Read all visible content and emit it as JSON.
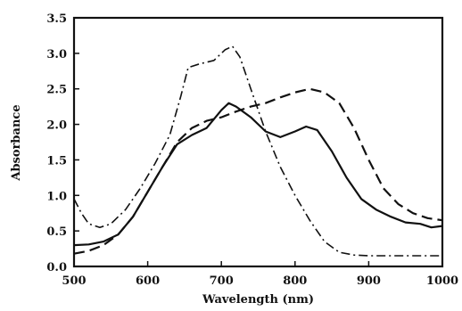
{
  "chart_data": {
    "type": "line",
    "title": "",
    "xlabel": "Wavelength (nm)",
    "ylabel": "Absorbance",
    "xlim": [
      500,
      1000
    ],
    "ylim": [
      0.0,
      3.5
    ],
    "x_ticks": [
      500,
      600,
      700,
      800,
      900,
      1000
    ],
    "x_tick_labels": [
      "500",
      "600",
      "700",
      "800",
      "900",
      "1000"
    ],
    "y_ticks": [
      0.0,
      0.5,
      1.0,
      1.5,
      2.0,
      2.5,
      3.0,
      3.5
    ],
    "y_tick_labels": [
      "0.0",
      "0.5",
      "1.0",
      "1.5",
      "2.0",
      "2.5",
      "3.0",
      "3.5"
    ],
    "grid": false,
    "legend": "none",
    "series": [
      {
        "style": "solid",
        "color": "#111111",
        "points": [
          [
            500,
            0.3
          ],
          [
            520,
            0.31
          ],
          [
            540,
            0.35
          ],
          [
            560,
            0.45
          ],
          [
            580,
            0.7
          ],
          [
            600,
            1.05
          ],
          [
            620,
            1.4
          ],
          [
            640,
            1.72
          ],
          [
            660,
            1.85
          ],
          [
            680,
            1.95
          ],
          [
            700,
            2.2
          ],
          [
            710,
            2.3
          ],
          [
            720,
            2.25
          ],
          [
            740,
            2.1
          ],
          [
            760,
            1.9
          ],
          [
            780,
            1.82
          ],
          [
            800,
            1.9
          ],
          [
            815,
            1.97
          ],
          [
            830,
            1.92
          ],
          [
            850,
            1.62
          ],
          [
            870,
            1.25
          ],
          [
            890,
            0.95
          ],
          [
            910,
            0.8
          ],
          [
            930,
            0.7
          ],
          [
            950,
            0.62
          ],
          [
            970,
            0.6
          ],
          [
            985,
            0.55
          ],
          [
            1000,
            0.57
          ]
        ]
      },
      {
        "style": "dashed",
        "color": "#111111",
        "points": [
          [
            500,
            0.18
          ],
          [
            520,
            0.22
          ],
          [
            540,
            0.3
          ],
          [
            560,
            0.45
          ],
          [
            580,
            0.7
          ],
          [
            600,
            1.05
          ],
          [
            620,
            1.4
          ],
          [
            640,
            1.75
          ],
          [
            660,
            1.95
          ],
          [
            680,
            2.05
          ],
          [
            700,
            2.1
          ],
          [
            720,
            2.18
          ],
          [
            740,
            2.25
          ],
          [
            760,
            2.3
          ],
          [
            780,
            2.38
          ],
          [
            800,
            2.45
          ],
          [
            820,
            2.5
          ],
          [
            840,
            2.45
          ],
          [
            860,
            2.3
          ],
          [
            880,
            1.95
          ],
          [
            900,
            1.5
          ],
          [
            920,
            1.1
          ],
          [
            940,
            0.88
          ],
          [
            960,
            0.75
          ],
          [
            980,
            0.68
          ],
          [
            1000,
            0.65
          ]
        ]
      },
      {
        "style": "dashdot",
        "color": "#111111",
        "points": [
          [
            500,
            0.95
          ],
          [
            510,
            0.75
          ],
          [
            520,
            0.6
          ],
          [
            535,
            0.55
          ],
          [
            550,
            0.6
          ],
          [
            570,
            0.8
          ],
          [
            590,
            1.1
          ],
          [
            610,
            1.45
          ],
          [
            630,
            1.85
          ],
          [
            645,
            2.4
          ],
          [
            655,
            2.8
          ],
          [
            670,
            2.85
          ],
          [
            690,
            2.9
          ],
          [
            705,
            3.05
          ],
          [
            715,
            3.1
          ],
          [
            725,
            2.95
          ],
          [
            740,
            2.5
          ],
          [
            760,
            1.9
          ],
          [
            780,
            1.4
          ],
          [
            800,
            1.0
          ],
          [
            820,
            0.65
          ],
          [
            840,
            0.35
          ],
          [
            860,
            0.2
          ],
          [
            880,
            0.16
          ],
          [
            900,
            0.15
          ],
          [
            950,
            0.15
          ],
          [
            1000,
            0.15
          ]
        ]
      }
    ]
  }
}
